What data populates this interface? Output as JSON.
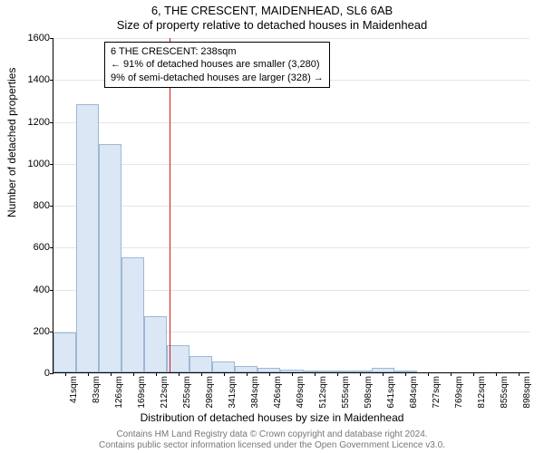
{
  "header": {
    "address": "6, THE CRESCENT, MAIDENHEAD, SL6 6AB",
    "subtitle": "Size of property relative to detached houses in Maidenhead"
  },
  "axes": {
    "ylabel": "Number of detached properties",
    "xlabel": "Distribution of detached houses by size in Maidenhead",
    "ylim": [
      0,
      1600
    ],
    "ytick_step": 200,
    "label_fontsize": 12,
    "tick_fontsize": 11
  },
  "histogram": {
    "type": "histogram",
    "categories": [
      "41sqm",
      "83sqm",
      "126sqm",
      "169sqm",
      "212sqm",
      "255sqm",
      "298sqm",
      "341sqm",
      "384sqm",
      "426sqm",
      "469sqm",
      "512sqm",
      "555sqm",
      "598sqm",
      "641sqm",
      "684sqm",
      "727sqm",
      "769sqm",
      "812sqm",
      "855sqm",
      "898sqm"
    ],
    "values": [
      190,
      1280,
      1090,
      550,
      270,
      130,
      80,
      50,
      30,
      20,
      15,
      10,
      10,
      5,
      20,
      5,
      0,
      0,
      0,
      0,
      0
    ],
    "bar_fill": "#dbe7f5",
    "bar_stroke": "#9db8d6",
    "bar_width_ratio": 1.0,
    "background_color": "#ffffff",
    "grid_color": "#e5e5e5"
  },
  "reference": {
    "x_position_sqm": 238,
    "line_color": "#d11a1a",
    "annotation": {
      "line1": "6 THE CRESCENT: 238sqm",
      "line2": "← 91% of detached houses are smaller (3,280)",
      "line3": "9% of semi-detached houses are larger (328) →"
    }
  },
  "attribution": {
    "line1": "Contains HM Land Registry data © Crown copyright and database right 2024.",
    "line2": "Contains public sector information licensed under the Open Government Licence v3.0."
  }
}
